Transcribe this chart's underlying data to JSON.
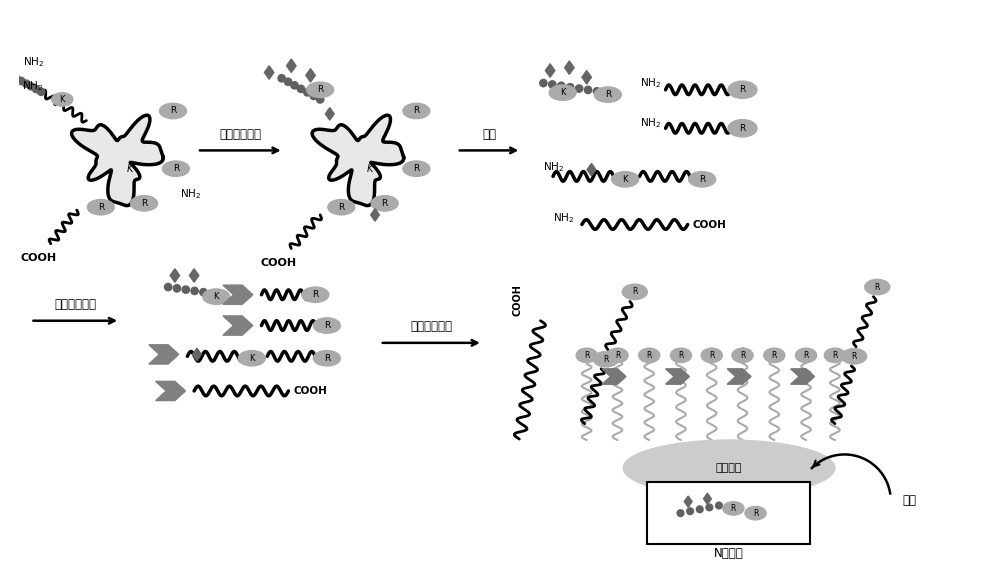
{
  "background_color": "#ffffff",
  "labels": {
    "step1_arrow": "封闭自由氨基",
    "step2_arrow": "酶解",
    "step3_arrow": "标记疏水基团",
    "step4_arrow": "反相材料去除",
    "label_fanxiang": "反相材料",
    "label_xidi": "洗脱",
    "label_ntuan": "N端肽段"
  },
  "figsize": [
    10.0,
    5.64
  ],
  "dpi": 100
}
